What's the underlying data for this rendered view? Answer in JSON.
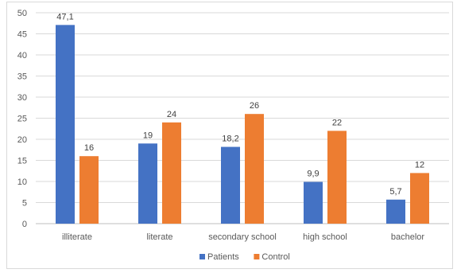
{
  "chart_data": {
    "type": "bar",
    "categories": [
      "illiterate",
      "literate",
      "secondary school",
      "high school",
      "bachelor"
    ],
    "series": [
      {
        "name": "Patients",
        "values": [
          47.1,
          19,
          18.2,
          9.9,
          5.7
        ],
        "labels": [
          "47,1",
          "19",
          "18,2",
          "9,9",
          "5,7"
        ],
        "color": "#4472C4"
      },
      {
        "name": "Control",
        "values": [
          16,
          24,
          26,
          22,
          12
        ],
        "labels": [
          "16",
          "24",
          "26",
          "22",
          "12"
        ],
        "color": "#ED7D31"
      }
    ],
    "ylim": [
      0,
      50
    ],
    "yticks": [
      0,
      5,
      10,
      15,
      20,
      25,
      30,
      35,
      40,
      45,
      50
    ],
    "grid": true,
    "legend_position": "bottom"
  }
}
